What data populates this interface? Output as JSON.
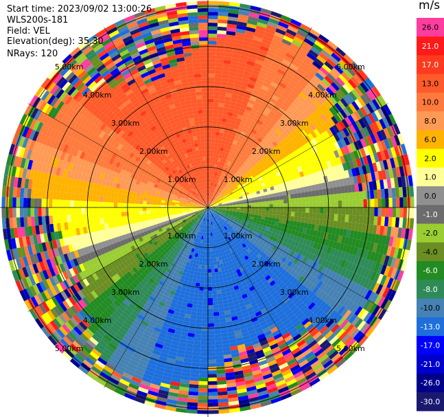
{
  "header": {
    "start_time": "Start time: 2023/09/02 13:00:26",
    "instrument": "WLS200s-181",
    "field": "Field: VEL",
    "elevation": "Elevation(deg): 35.30",
    "nrays": "NRays: 120"
  },
  "colorbar": {
    "unit": "m/s",
    "bins": [
      {
        "label": "26.0",
        "color": "#ff3d9e"
      },
      {
        "label": "21.0",
        "color": "#ff1a1a"
      },
      {
        "label": "17.0",
        "color": "#ff3a1f"
      },
      {
        "label": "13.0",
        "color": "#ff5a2a"
      },
      {
        "label": "10.0",
        "color": "#ff7a3c"
      },
      {
        "label": "8.0",
        "color": "#ff9a55"
      },
      {
        "label": "6.0",
        "color": "#ffb300"
      },
      {
        "label": "2.0",
        "color": "#ffff00"
      },
      {
        "label": "1.0",
        "color": "#ffff9a"
      },
      {
        "label": "0.0",
        "color": "#909090"
      },
      {
        "label": "-1.0",
        "color": "#6c6c6c"
      },
      {
        "label": "-2.0",
        "color": "#9acd32"
      },
      {
        "label": "-4.0",
        "color": "#6b8e23"
      },
      {
        "label": "-6.0",
        "color": "#228b22"
      },
      {
        "label": "-8.0",
        "color": "#2e8b57"
      },
      {
        "label": "-10.0",
        "color": "#4682b4"
      },
      {
        "label": "-13.0",
        "color": "#1e6fdc"
      },
      {
        "label": "-17.0",
        "color": "#0000ff"
      },
      {
        "label": "-21.0",
        "color": "#0000cd"
      },
      {
        "label": "-26.0",
        "color": "#00008b"
      },
      {
        "label": "-30.0",
        "color": "#191970"
      }
    ]
  },
  "chart_data": {
    "type": "heatmap",
    "projection": "polar PPI",
    "field": "VEL",
    "nrays": 120,
    "range_rings_km": [
      1.0,
      2.0,
      3.0,
      4.0,
      5.0
    ],
    "ring_labels": [
      "1.00km",
      "2.00km",
      "3.00km",
      "4.00km",
      "5.00km"
    ],
    "sectors": [
      {
        "direction": "north",
        "dominant_velocity_ms": [
          10.0,
          17.0
        ]
      },
      {
        "direction": "east",
        "dominant_velocity_ms": [
          1.0,
          6.0
        ]
      },
      {
        "direction": "south",
        "dominant_velocity_ms": [
          -17.0,
          -10.0
        ]
      },
      {
        "direction": "west",
        "dominant_velocity_ms": [
          -6.0,
          -1.0
        ]
      }
    ],
    "outer_ranges": "noisy / mixed velocities beyond ~4 km"
  }
}
